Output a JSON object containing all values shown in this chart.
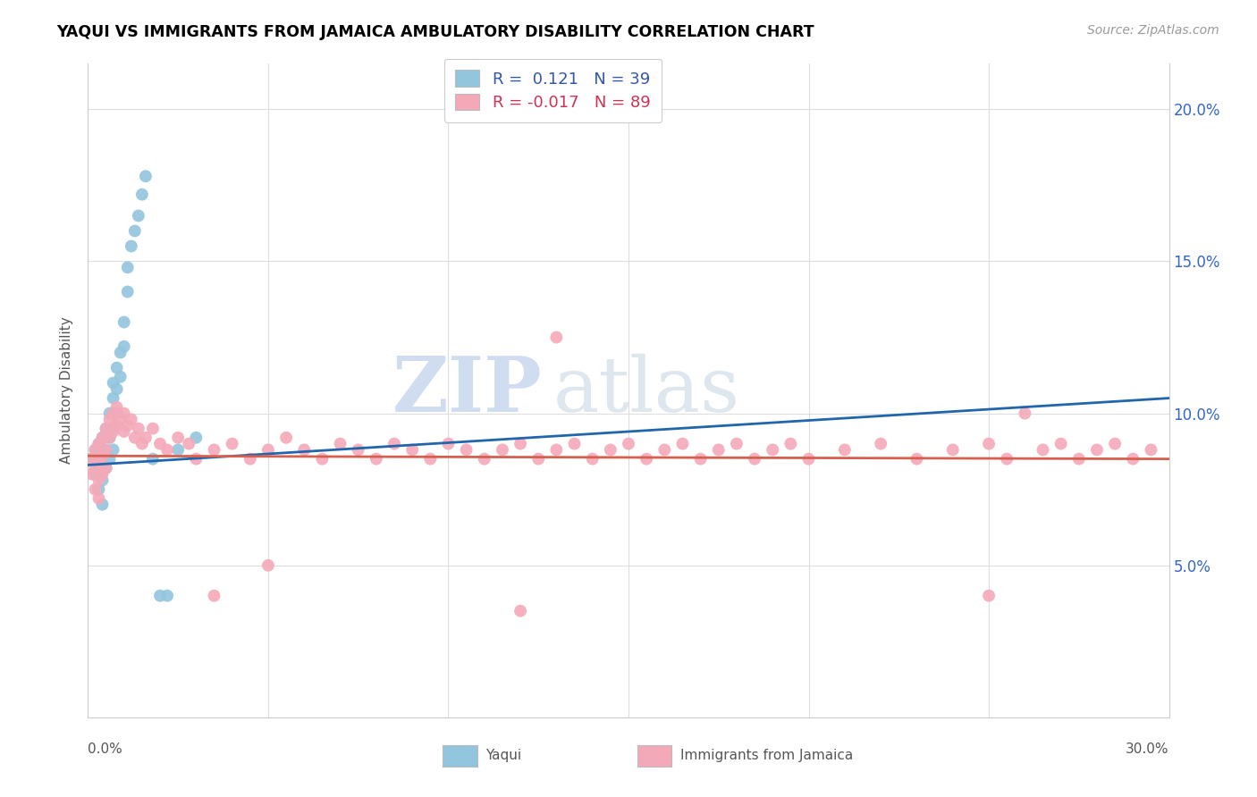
{
  "title": "YAQUI VS IMMIGRANTS FROM JAMAICA AMBULATORY DISABILITY CORRELATION CHART",
  "source": "Source: ZipAtlas.com",
  "ylabel": "Ambulatory Disability",
  "yticks": [
    0.0,
    0.05,
    0.1,
    0.15,
    0.2
  ],
  "ytick_labels": [
    "",
    "5.0%",
    "10.0%",
    "15.0%",
    "20.0%"
  ],
  "xmin": 0.0,
  "xmax": 0.3,
  "ymin": 0.0,
  "ymax": 0.215,
  "legend_r1": "R =  0.121   N = 39",
  "legend_r2": "R = -0.017   N = 89",
  "blue_color": "#92c5de",
  "pink_color": "#f4a9b8",
  "line_blue": "#2166ac",
  "line_pink": "#d6604d",
  "watermark_zip": "ZIP",
  "watermark_atlas": "atlas",
  "blue_R": 0.121,
  "pink_R": -0.017,
  "blue_scatter_x": [
    0.001,
    0.002,
    0.002,
    0.003,
    0.003,
    0.003,
    0.004,
    0.004,
    0.004,
    0.004,
    0.005,
    0.005,
    0.005,
    0.006,
    0.006,
    0.006,
    0.007,
    0.007,
    0.007,
    0.007,
    0.008,
    0.008,
    0.008,
    0.009,
    0.009,
    0.01,
    0.01,
    0.011,
    0.011,
    0.012,
    0.013,
    0.014,
    0.015,
    0.016,
    0.018,
    0.02,
    0.022,
    0.025,
    0.03
  ],
  "blue_scatter_y": [
    0.085,
    0.088,
    0.08,
    0.09,
    0.083,
    0.075,
    0.092,
    0.086,
    0.078,
    0.07,
    0.095,
    0.088,
    0.082,
    0.1,
    0.092,
    0.085,
    0.11,
    0.105,
    0.095,
    0.088,
    0.115,
    0.108,
    0.1,
    0.12,
    0.112,
    0.13,
    0.122,
    0.14,
    0.148,
    0.155,
    0.16,
    0.165,
    0.172,
    0.178,
    0.085,
    0.04,
    0.04,
    0.088,
    0.092
  ],
  "pink_scatter_x": [
    0.001,
    0.001,
    0.002,
    0.002,
    0.002,
    0.003,
    0.003,
    0.003,
    0.003,
    0.004,
    0.004,
    0.004,
    0.005,
    0.005,
    0.005,
    0.006,
    0.006,
    0.007,
    0.007,
    0.008,
    0.008,
    0.009,
    0.01,
    0.01,
    0.011,
    0.012,
    0.013,
    0.014,
    0.015,
    0.016,
    0.018,
    0.02,
    0.022,
    0.025,
    0.028,
    0.03,
    0.035,
    0.04,
    0.045,
    0.05,
    0.055,
    0.06,
    0.065,
    0.07,
    0.075,
    0.08,
    0.085,
    0.09,
    0.095,
    0.1,
    0.105,
    0.11,
    0.115,
    0.12,
    0.125,
    0.13,
    0.135,
    0.14,
    0.145,
    0.15,
    0.155,
    0.16,
    0.165,
    0.17,
    0.175,
    0.18,
    0.185,
    0.19,
    0.195,
    0.2,
    0.21,
    0.22,
    0.23,
    0.24,
    0.25,
    0.255,
    0.26,
    0.265,
    0.27,
    0.275,
    0.28,
    0.285,
    0.29,
    0.295,
    0.05,
    0.13,
    0.25,
    0.035,
    0.12
  ],
  "pink_scatter_y": [
    0.085,
    0.08,
    0.088,
    0.082,
    0.075,
    0.09,
    0.084,
    0.078,
    0.072,
    0.092,
    0.086,
    0.08,
    0.095,
    0.088,
    0.082,
    0.098,
    0.092,
    0.1,
    0.094,
    0.102,
    0.096,
    0.098,
    0.1,
    0.094,
    0.096,
    0.098,
    0.092,
    0.095,
    0.09,
    0.092,
    0.095,
    0.09,
    0.088,
    0.092,
    0.09,
    0.085,
    0.088,
    0.09,
    0.085,
    0.088,
    0.092,
    0.088,
    0.085,
    0.09,
    0.088,
    0.085,
    0.09,
    0.088,
    0.085,
    0.09,
    0.088,
    0.085,
    0.088,
    0.09,
    0.085,
    0.088,
    0.09,
    0.085,
    0.088,
    0.09,
    0.085,
    0.088,
    0.09,
    0.085,
    0.088,
    0.09,
    0.085,
    0.088,
    0.09,
    0.085,
    0.088,
    0.09,
    0.085,
    0.088,
    0.09,
    0.085,
    0.1,
    0.088,
    0.09,
    0.085,
    0.088,
    0.09,
    0.085,
    0.088,
    0.05,
    0.125,
    0.04,
    0.04,
    0.035
  ]
}
